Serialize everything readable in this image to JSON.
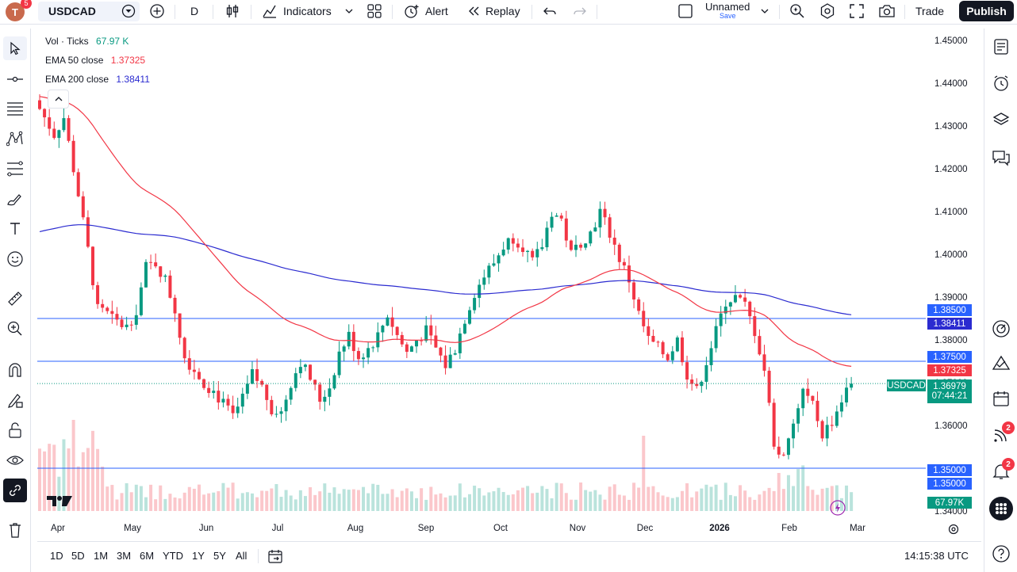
{
  "topbar": {
    "avatar_letter": "T",
    "avatar_badge": "5",
    "symbol": "USDCAD",
    "interval": "D",
    "indicators_label": "Indicators",
    "alert_label": "Alert",
    "replay_label": "Replay",
    "layout_name": "Unnamed",
    "layout_save": "Save",
    "trade_label": "Trade",
    "publish_label": "Publish"
  },
  "legend": {
    "vol_label": "Vol · Ticks",
    "vol_value": "67.97 K",
    "ema50_label": "EMA 50 close",
    "ema50_value": "1.37325",
    "ema200_label": "EMA 200 close",
    "ema200_value": "1.38411"
  },
  "axis": {
    "price_ticks": [
      "1.45000",
      "1.44000",
      "1.43000",
      "1.42000",
      "1.41000",
      "1.40000",
      "1.39000",
      "1.38000",
      "1.37000",
      "1.36000",
      "1.35000",
      "1.34000"
    ],
    "time_ticks": [
      "Apr",
      "May",
      "Jun",
      "Jul",
      "Aug",
      "Sep",
      "Oct",
      "Nov",
      "Dec",
      "2026",
      "Feb",
      "Mar"
    ]
  },
  "price_labels": {
    "line_1385": "1.38500",
    "ema200": "1.38411",
    "line_1375": "1.37500",
    "ema50": "1.37325",
    "symbol": "USDCAD",
    "last_price": "1.36979",
    "countdown": "07:44:21",
    "line_1350a": "1.35000",
    "line_1350b": "1.35000",
    "volume": "67.97K"
  },
  "bottombar": {
    "ranges": [
      "1D",
      "5D",
      "1M",
      "3M",
      "6M",
      "YTD",
      "1Y",
      "5Y",
      "All"
    ],
    "clock": "14:15:38 UTC"
  },
  "right_toolbar": {
    "badge_ideas": "2",
    "badge_alerts": "2"
  },
  "colors": {
    "up": "#089981",
    "down": "#f23645",
    "ema50": "#f23645",
    "ema200": "#2b2bd0",
    "hline": "#2962ff",
    "last_price": "#089981"
  },
  "chart_data": {
    "type": "candlestick",
    "symbol": "USDCAD",
    "interval": "D",
    "ylim": [
      1.34,
      1.45
    ],
    "horizontal_lines": [
      1.385,
      1.375,
      1.35
    ],
    "last_price": 1.36979,
    "ema50_last": 1.37325,
    "ema200_last": 1.38411,
    "volume_last_k": 67.97,
    "x_labels": [
      "Apr",
      "May",
      "Jun",
      "Jul",
      "Aug",
      "Sep",
      "Oct",
      "Nov",
      "Dec",
      "2026",
      "Feb",
      "Mar"
    ],
    "close_path": [
      [
        0,
        1.434
      ],
      [
        3,
        1.428
      ],
      [
        5,
        1.432
      ],
      [
        8,
        1.414
      ],
      [
        10,
        1.401
      ],
      [
        12,
        1.387
      ],
      [
        14,
        1.386
      ],
      [
        16,
        1.384
      ],
      [
        18,
        1.383
      ],
      [
        20,
        1.387
      ],
      [
        22,
        1.397
      ],
      [
        24,
        1.398
      ],
      [
        26,
        1.394
      ],
      [
        28,
        1.387
      ],
      [
        30,
        1.376
      ],
      [
        32,
        1.373
      ],
      [
        34,
        1.37
      ],
      [
        36,
        1.368
      ],
      [
        38,
        1.365
      ],
      [
        40,
        1.362
      ],
      [
        42,
        1.366
      ],
      [
        44,
        1.372
      ],
      [
        46,
        1.369
      ],
      [
        48,
        1.364
      ],
      [
        50,
        1.363
      ],
      [
        52,
        1.37
      ],
      [
        54,
        1.375
      ],
      [
        56,
        1.371
      ],
      [
        58,
        1.366
      ],
      [
        60,
        1.369
      ],
      [
        62,
        1.377
      ],
      [
        64,
        1.381
      ],
      [
        66,
        1.376
      ],
      [
        68,
        1.378
      ],
      [
        70,
        1.381
      ],
      [
        72,
        1.386
      ],
      [
        74,
        1.381
      ],
      [
        76,
        1.377
      ],
      [
        78,
        1.38
      ],
      [
        80,
        1.382
      ],
      [
        82,
        1.378
      ],
      [
        84,
        1.374
      ],
      [
        86,
        1.378
      ],
      [
        88,
        1.385
      ],
      [
        90,
        1.391
      ],
      [
        92,
        1.395
      ],
      [
        94,
        1.398
      ],
      [
        96,
        1.402
      ],
      [
        98,
        1.404
      ],
      [
        100,
        1.402
      ],
      [
        102,
        1.398
      ],
      [
        104,
        1.402
      ],
      [
        106,
        1.41
      ],
      [
        108,
        1.408
      ],
      [
        110,
        1.4
      ],
      [
        112,
        1.403
      ],
      [
        114,
        1.405
      ],
      [
        116,
        1.41
      ],
      [
        118,
        1.405
      ],
      [
        120,
        1.399
      ],
      [
        122,
        1.394
      ],
      [
        124,
        1.386
      ],
      [
        126,
        1.38
      ],
      [
        128,
        1.378
      ],
      [
        130,
        1.376
      ],
      [
        132,
        1.38
      ],
      [
        134,
        1.372
      ],
      [
        136,
        1.368
      ],
      [
        138,
        1.375
      ],
      [
        140,
        1.382
      ],
      [
        142,
        1.389
      ],
      [
        144,
        1.39
      ],
      [
        146,
        1.388
      ],
      [
        148,
        1.382
      ],
      [
        150,
        1.373
      ],
      [
        152,
        1.356
      ],
      [
        154,
        1.352
      ],
      [
        156,
        1.36
      ],
      [
        158,
        1.368
      ],
      [
        160,
        1.365
      ],
      [
        162,
        1.358
      ],
      [
        164,
        1.361
      ],
      [
        166,
        1.366
      ],
      [
        168,
        1.37
      ]
    ]
  }
}
